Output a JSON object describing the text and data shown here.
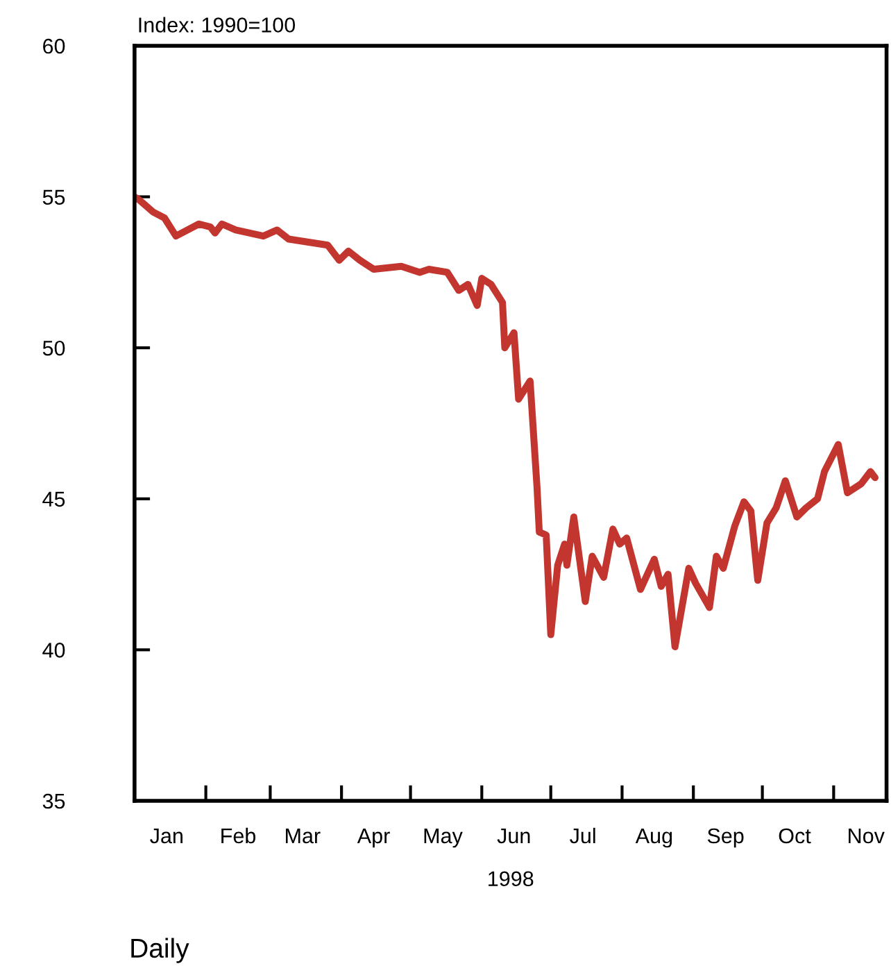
{
  "chart_data": {
    "type": "line",
    "ylabel": "Index: 1990=100",
    "xlabel": "1998",
    "annotations": [
      "Daily"
    ],
    "x": [
      "1998-01-01",
      "1998-01-03",
      "1998-01-09",
      "1998-01-14",
      "1998-01-19",
      "1998-01-29",
      "1998-02-03",
      "1998-02-05",
      "1998-02-08",
      "1998-02-14",
      "1998-02-26",
      "1998-03-04",
      "1998-03-09",
      "1998-03-26",
      "1998-03-31",
      "1998-04-04",
      "1998-04-09",
      "1998-04-15",
      "1998-04-27",
      "1998-05-05",
      "1998-05-09",
      "1998-05-17",
      "1998-05-22",
      "1998-05-26",
      "1998-05-30",
      "1998-06-01",
      "1998-06-05",
      "1998-06-10",
      "1998-06-11",
      "1998-06-15",
      "1998-06-17",
      "1998-06-22",
      "1998-06-25",
      "1998-06-26",
      "1998-06-29",
      "1998-07-01",
      "1998-07-04",
      "1998-07-07",
      "1998-07-08",
      "1998-07-11",
      "1998-07-16",
      "1998-07-19",
      "1998-07-24",
      "1998-07-28",
      "1998-07-31",
      "1998-08-03",
      "1998-08-09",
      "1998-08-15",
      "1998-08-18",
      "1998-08-21",
      "1998-08-24",
      "1998-08-30",
      "1998-09-02",
      "1998-09-08",
      "1998-09-11",
      "1998-09-14",
      "1998-09-19",
      "1998-09-23",
      "1998-09-26",
      "1998-09-29",
      "1998-10-03",
      "1998-10-07",
      "1998-10-11",
      "1998-10-16",
      "1998-10-20",
      "1998-10-25",
      "1998-10-28",
      "1998-11-03",
      "1998-11-07",
      "1998-11-13",
      "1998-11-17",
      "1998-11-19"
    ],
    "series": [
      {
        "color": "#c3362f",
        "values": [
          55.0,
          54.9,
          54.5,
          54.3,
          53.7,
          54.1,
          54.0,
          53.8,
          54.1,
          53.9,
          53.7,
          53.9,
          53.6,
          53.4,
          52.9,
          53.2,
          52.9,
          52.6,
          52.7,
          52.5,
          52.6,
          52.5,
          51.9,
          52.1,
          51.4,
          52.3,
          52.1,
          51.5,
          50.0,
          50.5,
          48.3,
          48.9,
          45.4,
          43.9,
          43.8,
          40.5,
          42.8,
          43.5,
          42.8,
          44.4,
          41.6,
          43.1,
          42.4,
          44.0,
          43.5,
          43.7,
          42.0,
          43.0,
          42.1,
          42.5,
          40.1,
          42.7,
          42.2,
          41.4,
          43.1,
          42.7,
          44.1,
          44.9,
          44.6,
          42.3,
          44.2,
          44.7,
          45.6,
          44.4,
          44.7,
          45.0,
          45.9,
          46.8,
          45.2,
          45.5,
          45.9,
          45.7
        ]
      }
    ],
    "xlim": [
      "1998-01-01",
      "1998-11-24"
    ],
    "ylim": [
      35,
      60
    ],
    "yticks": [
      60,
      55,
      50,
      45,
      40,
      35
    ],
    "xticks": [
      {
        "value": "1998-02-01",
        "label": null
      },
      {
        "value": "1998-03-01",
        "label": null
      },
      {
        "value": "1998-04-01",
        "label": null
      },
      {
        "value": "1998-05-01",
        "label": null
      },
      {
        "value": "1998-06-01",
        "label": null
      },
      {
        "value": "1998-07-01",
        "label": null
      },
      {
        "value": "1998-08-01",
        "label": null
      },
      {
        "value": "1998-09-01",
        "label": null
      },
      {
        "value": "1998-10-01",
        "label": null
      },
      {
        "value": "1998-11-01",
        "label": null
      },
      {
        "value": "1998-01-15",
        "label": "Jan"
      },
      {
        "value": "1998-02-15",
        "label": "Feb"
      },
      {
        "value": "1998-03-15",
        "label": "Mar"
      },
      {
        "value": "1998-04-15",
        "label": "Apr"
      },
      {
        "value": "1998-05-15",
        "label": "May"
      },
      {
        "value": "1998-06-15",
        "label": "Jun"
      },
      {
        "value": "1998-07-15",
        "label": "Jul"
      },
      {
        "value": "1998-08-15",
        "label": "Aug"
      },
      {
        "value": "1998-09-15",
        "label": "Sep"
      },
      {
        "value": "1998-10-15",
        "label": "Oct"
      },
      {
        "value": "1998-11-15",
        "label": "Nov"
      }
    ],
    "grid": false,
    "line_style": "solid"
  }
}
